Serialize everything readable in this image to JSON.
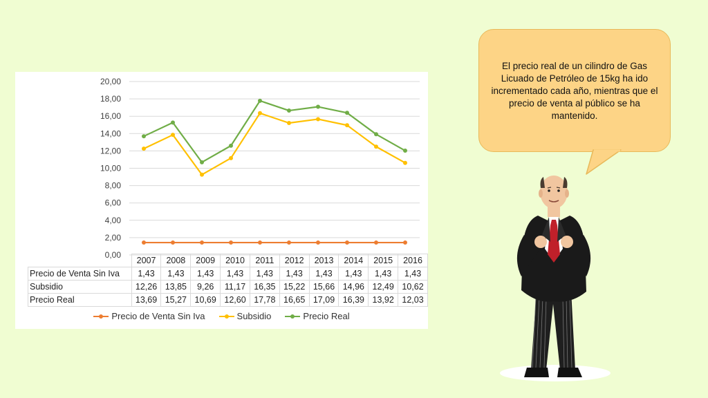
{
  "chart_data": {
    "type": "line",
    "x": [
      "2007",
      "2008",
      "2009",
      "2010",
      "2011",
      "2012",
      "2013",
      "2014",
      "2015",
      "2016"
    ],
    "ylim": [
      0,
      20
    ],
    "yticks": [
      "0,00",
      "2,00",
      "4,00",
      "6,00",
      "8,00",
      "10,00",
      "12,00",
      "14,00",
      "16,00",
      "18,00",
      "20,00"
    ],
    "grid": true,
    "legend_position": "bottom",
    "series": [
      {
        "name": "Precio de Venta Sin Iva",
        "color": "#ed7d31",
        "values": [
          1.43,
          1.43,
          1.43,
          1.43,
          1.43,
          1.43,
          1.43,
          1.43,
          1.43,
          1.43
        ],
        "labels": [
          "1,43",
          "1,43",
          "1,43",
          "1,43",
          "1,43",
          "1,43",
          "1,43",
          "1,43",
          "1,43",
          "1,43"
        ]
      },
      {
        "name": "Subsidio",
        "color": "#ffc000",
        "values": [
          12.26,
          13.85,
          9.26,
          11.17,
          16.35,
          15.22,
          15.66,
          14.96,
          12.49,
          10.62
        ],
        "labels": [
          "12,26",
          "13,85",
          "9,26",
          "11,17",
          "16,35",
          "15,22",
          "15,66",
          "14,96",
          "12,49",
          "10,62"
        ]
      },
      {
        "name": "Precio Real",
        "color": "#70ad47",
        "values": [
          13.69,
          15.27,
          10.69,
          12.6,
          17.78,
          16.65,
          17.09,
          16.39,
          13.92,
          12.03
        ],
        "labels": [
          "13,69",
          "15,27",
          "10,69",
          "12,60",
          "17,78",
          "16,65",
          "17,09",
          "16,39",
          "13,92",
          "12,03"
        ]
      }
    ]
  },
  "callout": {
    "text": "El precio real de un cilindro de Gas Licuado de Petróleo de 15kg ha ido incrementado cada año, mientras que el precio de venta al público se ha mantenido."
  },
  "illustration": {
    "icon": "businessman-icon"
  }
}
